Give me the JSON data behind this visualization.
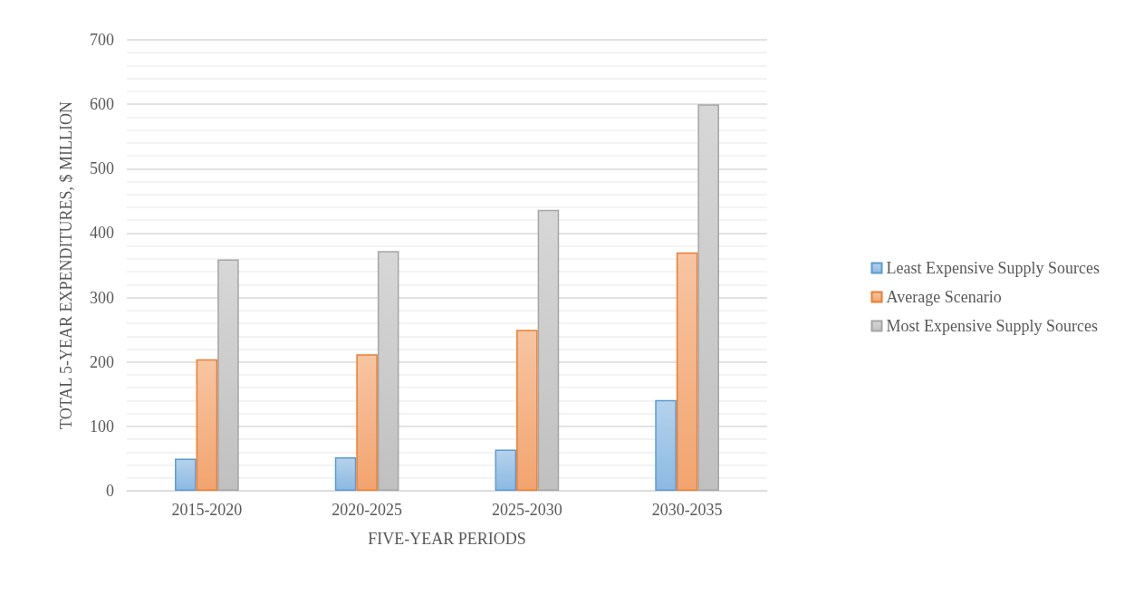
{
  "chart_data": {
    "type": "bar",
    "xlabel": "FIVE-YEAR PERIODS",
    "ylabel": "TOTAL 5-YEAR EXPENDITURES, $ MILLION",
    "categories": [
      "2015-2020",
      "2020-2025",
      "2025-2030",
      "2030-2035"
    ],
    "series": [
      {
        "name": "Least Expensive Supply Sources",
        "color": "#5b9bd5",
        "values": [
          50,
          52,
          64,
          141
        ]
      },
      {
        "name": "Average Scenario",
        "color": "#ed7d31",
        "values": [
          204,
          212,
          250,
          370
        ]
      },
      {
        "name": "Most Expensive Supply Sources",
        "color": "#a5a5a5",
        "values": [
          359,
          372,
          436,
          600
        ]
      }
    ],
    "ylim": [
      0,
      700
    ],
    "yticks": [
      0,
      100,
      200,
      300,
      400,
      500,
      600,
      700
    ],
    "grid": "y",
    "legend": "right"
  }
}
